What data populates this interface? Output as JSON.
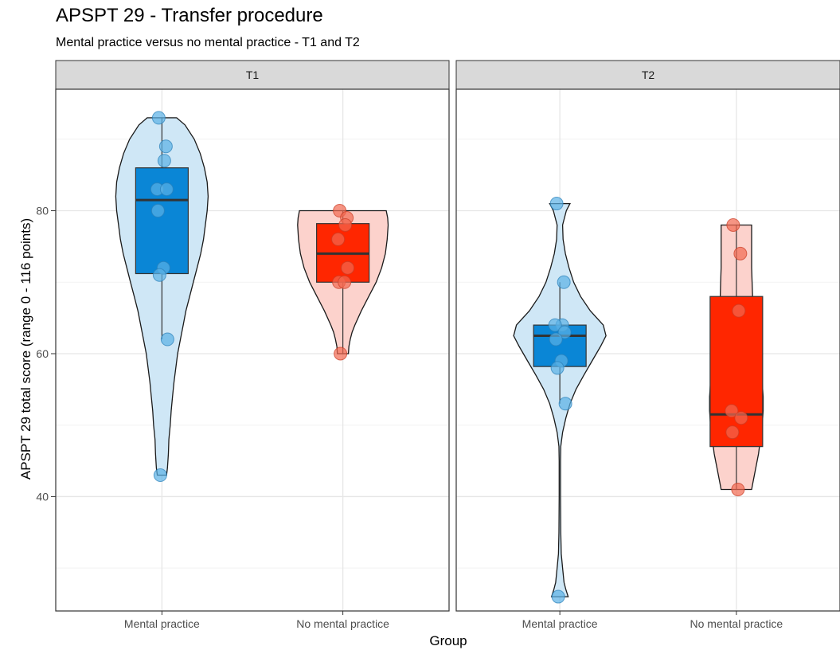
{
  "chart_data": {
    "type": "violin",
    "title": "APSPT 29 - Transfer procedure",
    "subtitle": "Mental practice versus no mental practice - T1 and T2",
    "xlabel": "Group",
    "ylabel": "APSPT 29 total score (range 0 - 116 points)",
    "ylim": [
      24,
      97
    ],
    "yticks": [
      40,
      60,
      80
    ],
    "categories": [
      "Mental practice",
      "No mental practice"
    ],
    "colors": {
      "Mental practice": {
        "box": "#0a86d6",
        "violin": "#cfe7f6",
        "point": "#5ab0e6"
      },
      "No mental practice": {
        "box": "#ff2600",
        "violin": "#fcd2cc",
        "point": "#f26850"
      }
    },
    "panels": [
      {
        "label": "T1",
        "groups": [
          {
            "name": "Mental practice",
            "box": {
              "q1": 71.2,
              "median": 81.5,
              "q3": 86,
              "whisker_low": 62,
              "whisker_high": 93
            },
            "violin": {
              "min": 43,
              "max": 93,
              "profile": [
                [
                  43,
                  0.1
                ],
                [
                  44,
                  0.12
                ],
                [
                  46,
                  0.14
                ],
                [
                  48,
                  0.15
                ],
                [
                  50,
                  0.18
                ],
                [
                  52,
                  0.2
                ],
                [
                  54,
                  0.23
                ],
                [
                  56,
                  0.26
                ],
                [
                  58,
                  0.3
                ],
                [
                  60,
                  0.34
                ],
                [
                  62,
                  0.4
                ],
                [
                  64,
                  0.46
                ],
                [
                  66,
                  0.52
                ],
                [
                  68,
                  0.6
                ],
                [
                  70,
                  0.68
                ],
                [
                  72,
                  0.76
                ],
                [
                  74,
                  0.84
                ],
                [
                  76,
                  0.9
                ],
                [
                  78,
                  0.94
                ],
                [
                  80,
                  0.98
                ],
                [
                  82,
                  1.0
                ],
                [
                  84,
                  0.98
                ],
                [
                  86,
                  0.92
                ],
                [
                  88,
                  0.83
                ],
                [
                  90,
                  0.7
                ],
                [
                  92,
                  0.5
                ],
                [
                  93,
                  0.32
                ]
              ]
            },
            "points": [
              93,
              89,
              87,
              83,
              83,
              80,
              72,
              71,
              62,
              43
            ]
          },
          {
            "name": "No mental practice",
            "box": {
              "q1": 70,
              "median": 74,
              "q3": 78.2,
              "whisker_low": 60,
              "whisker_high": 80
            },
            "violin": {
              "min": 60,
              "max": 80,
              "profile": [
                [
                  60,
                  0.12
                ],
                [
                  61,
                  0.13
                ],
                [
                  62,
                  0.16
                ],
                [
                  63,
                  0.2
                ],
                [
                  64,
                  0.26
                ],
                [
                  66,
                  0.4
                ],
                [
                  68,
                  0.56
                ],
                [
                  70,
                  0.72
                ],
                [
                  72,
                  0.84
                ],
                [
                  74,
                  0.92
                ],
                [
                  76,
                  0.96
                ],
                [
                  78,
                  0.98
                ],
                [
                  79,
                  0.97
                ],
                [
                  80,
                  0.94
                ]
              ]
            },
            "points": [
              80,
              79,
              78,
              76,
              72,
              70,
              70,
              60
            ]
          }
        ]
      },
      {
        "label": "T2",
        "groups": [
          {
            "name": "Mental practice",
            "box": {
              "q1": 58.2,
              "median": 62.5,
              "q3": 64,
              "whisker_low": 53,
              "whisker_high": 70
            },
            "violin": {
              "min": 26,
              "max": 81,
              "profile": [
                [
                  26,
                  0.18
                ],
                [
                  27,
                  0.13
                ],
                [
                  28,
                  0.09
                ],
                [
                  30,
                  0.06
                ],
                [
                  32,
                  0.03
                ],
                [
                  35,
                  0.02
                ],
                [
                  40,
                  0.015
                ],
                [
                  45,
                  0.015
                ],
                [
                  47,
                  0.02
                ],
                [
                  49,
                  0.06
                ],
                [
                  51,
                  0.13
                ],
                [
                  53,
                  0.22
                ],
                [
                  55,
                  0.35
                ],
                [
                  57,
                  0.52
                ],
                [
                  59,
                  0.7
                ],
                [
                  61,
                  0.88
                ],
                [
                  62.5,
                  1.0
                ],
                [
                  64,
                  0.94
                ],
                [
                  66,
                  0.66
                ],
                [
                  68,
                  0.45
                ],
                [
                  70,
                  0.3
                ],
                [
                  72,
                  0.2
                ],
                [
                  74,
                  0.12
                ],
                [
                  76,
                  0.07
                ],
                [
                  78,
                  0.06
                ],
                [
                  80,
                  0.14
                ],
                [
                  81,
                  0.22
                ]
              ]
            },
            "points": [
              81,
              70,
              64,
              64,
              63,
              62,
              59,
              58,
              53,
              26
            ]
          },
          {
            "name": "No mental practice",
            "box": {
              "q1": 47,
              "median": 51.5,
              "q3": 68,
              "whisker_low": 41,
              "whisker_high": 78
            },
            "violin": {
              "min": 41,
              "max": 78,
              "profile": [
                [
                  41,
                  0.33
                ],
                [
                  42,
                  0.36
                ],
                [
                  44,
                  0.42
                ],
                [
                  46,
                  0.48
                ],
                [
                  48,
                  0.52
                ],
                [
                  50,
                  0.56
                ],
                [
                  52,
                  0.58
                ],
                [
                  54,
                  0.58
                ],
                [
                  56,
                  0.56
                ],
                [
                  58,
                  0.53
                ],
                [
                  60,
                  0.5
                ],
                [
                  62,
                  0.46
                ],
                [
                  64,
                  0.42
                ],
                [
                  66,
                  0.38
                ],
                [
                  68,
                  0.35
                ],
                [
                  70,
                  0.34
                ],
                [
                  72,
                  0.33
                ],
                [
                  74,
                  0.33
                ],
                [
                  76,
                  0.33
                ],
                [
                  78,
                  0.33
                ]
              ]
            },
            "points": [
              78,
              74,
              66,
              52,
              51,
              49,
              41
            ]
          }
        ]
      }
    ],
    "grid": true,
    "legend": "none"
  }
}
